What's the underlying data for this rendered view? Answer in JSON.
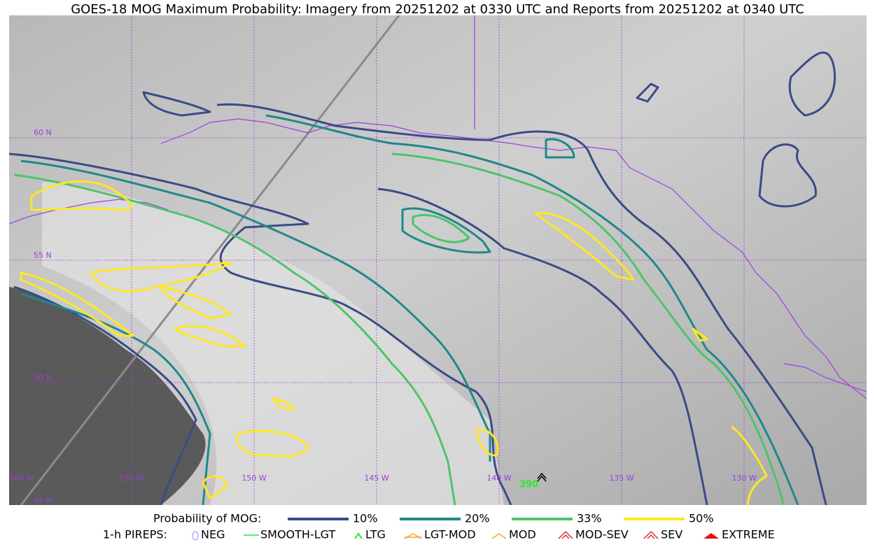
{
  "header": {
    "title": "GOES-18 MOG Maximum Probability: Imagery from 20251202 at 0330 UTC and Reports from 20251202 at 0340 UTC"
  },
  "map": {
    "lat_labels": [
      "60 N",
      "55 N",
      "50 N",
      "45 N"
    ],
    "lon_labels": [
      "160 W",
      "155 W",
      "150 W",
      "145 W",
      "140 W",
      "135 W",
      "130 W"
    ],
    "report_label": "390"
  },
  "legend": {
    "title": "Probability of MOG:",
    "items": [
      {
        "label": "10%",
        "color": "#3a4b87"
      },
      {
        "label": "20%",
        "color": "#20888a"
      },
      {
        "label": "33%",
        "color": "#4ec46a"
      },
      {
        "label": "50%",
        "color": "#fde725"
      }
    ]
  },
  "pireps": {
    "title": "1-h PIREPS:",
    "items": [
      "NEG",
      "SMOOTH-LGT",
      "LTG",
      "LGT-MOD",
      "MOD",
      "MOD-SEV",
      "SEV",
      "EXTREME"
    ]
  }
}
